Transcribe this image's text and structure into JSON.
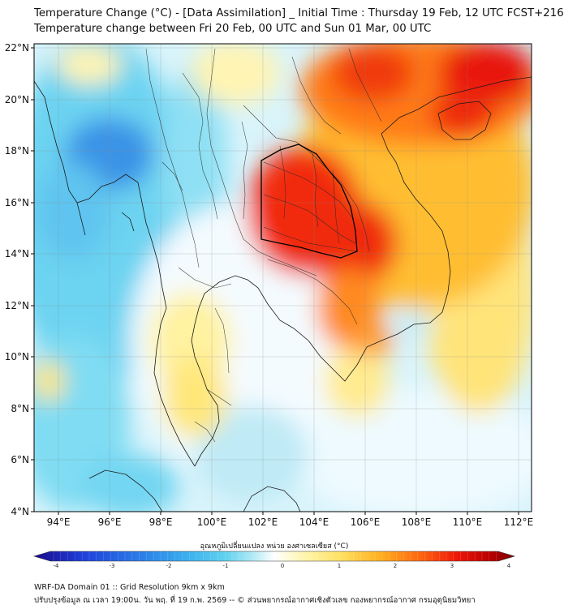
{
  "title": {
    "line1": "Temperature Change (°C) - [Data Assimilation] _ Initial Time : Thursday 19 Feb, 12 UTC FCST+216",
    "line2": "Temperature change between Fri 20 Feb, 00 UTC and Sun 01 Mar, 00 UTC"
  },
  "map": {
    "lon_range": [
      93,
      112.5
    ],
    "lat_range": [
      4,
      22.2
    ],
    "lon_ticks": [
      "94°E",
      "96°E",
      "98°E",
      "100°E",
      "102°E",
      "104°E",
      "106°E",
      "108°E",
      "110°E",
      "112°E"
    ],
    "lat_ticks": [
      "22°N",
      "20°N",
      "18°N",
      "16°N",
      "14°N",
      "12°N",
      "10°N",
      "8°N",
      "6°N",
      "4°N"
    ],
    "grid": true
  },
  "colorbar": {
    "label": "อุณหภูมิเปลี่ยนแปลง หน่วย องศาเซลเซียส (°C)",
    "min": -4,
    "max": 4,
    "ticks": [
      "-4",
      "-3",
      "-2",
      "-1",
      "0",
      "1",
      "2",
      "3",
      "4"
    ],
    "colors": [
      "#1a0a8c",
      "#1f3fd8",
      "#2b7de8",
      "#3bb0ee",
      "#63d2f0",
      "#b8ecf6",
      "#f2fbff",
      "#ffffff",
      "#fff6b0",
      "#ffe060",
      "#ffb020",
      "#ff6a10",
      "#ee1808",
      "#b80000",
      "#7a0000"
    ]
  },
  "footer": {
    "line1": "WRF-DA Domain 01 :: Grid Resolution 9km x 9km",
    "line2": "ปรับปรุงข้อมูล ณ เวลา 19:00น. วัน พฤ. ที่ 19 ก.พ. 2569 -- © ส่วนพยากรณ์อากาศเชิงตัวเลข กองพยากรณ์อากาศ กรมอุตุนิยมวิทยา"
  }
}
